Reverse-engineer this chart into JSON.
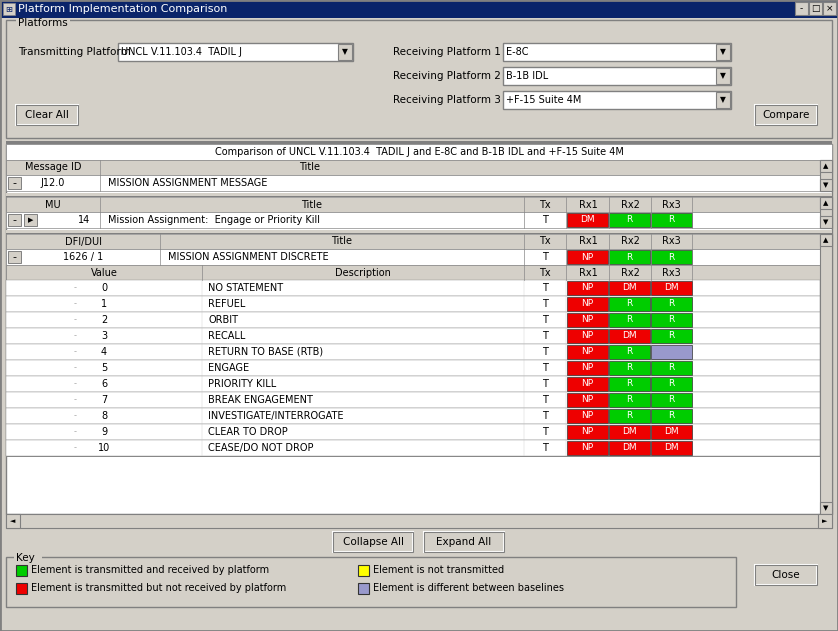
{
  "title": "Platform Implementation Comparison",
  "bg_color": "#d4d0c8",
  "transmitting_platform": "UNCL V.11.103.4  TADIL J",
  "receiving_platform1": "E-8C",
  "receiving_platform2": "B-1B IDL",
  "receiving_platform3": "+F-15 Suite 4M",
  "comparison_title": "Comparison of UNCL V.11.103.4  TADIL J and E-8C and B-1B IDL and +F-15 Suite 4M",
  "message_id": "J12.0",
  "message_title": "MISSION ASSIGNMENT MESSAGE",
  "mu_row": {
    "mu": "14",
    "title": "Mission Assignment:  Engage or Priority Kill",
    "tx": "T",
    "rx1": {
      "text": "DM",
      "color": "#ee0000"
    },
    "rx2": {
      "text": "R",
      "color": "#00cc00"
    },
    "rx3": {
      "text": "R",
      "color": "#00cc00"
    }
  },
  "dfi_row": {
    "dfi": "1626 / 1",
    "title": "MISSION ASSIGNMENT DISCRETE",
    "tx": "T",
    "rx1": {
      "text": "NP",
      "color": "#ee0000"
    },
    "rx2": {
      "text": "R",
      "color": "#00cc00"
    },
    "rx3": {
      "text": "R",
      "color": "#00cc00"
    }
  },
  "value_rows": [
    {
      "value": "0",
      "desc": "NO STATEMENT",
      "tx": "T",
      "rx1": {
        "text": "NP",
        "color": "#ee0000"
      },
      "rx2": {
        "text": "DM",
        "color": "#ee0000"
      },
      "rx3": {
        "text": "DM",
        "color": "#ee0000"
      }
    },
    {
      "value": "1",
      "desc": "REFUEL",
      "tx": "T",
      "rx1": {
        "text": "NP",
        "color": "#ee0000"
      },
      "rx2": {
        "text": "R",
        "color": "#00cc00"
      },
      "rx3": {
        "text": "R",
        "color": "#00cc00"
      }
    },
    {
      "value": "2",
      "desc": "ORBIT",
      "tx": "T",
      "rx1": {
        "text": "NP",
        "color": "#ee0000"
      },
      "rx2": {
        "text": "R",
        "color": "#00cc00"
      },
      "rx3": {
        "text": "R",
        "color": "#00cc00"
      }
    },
    {
      "value": "3",
      "desc": "RECALL",
      "tx": "T",
      "rx1": {
        "text": "NP",
        "color": "#ee0000"
      },
      "rx2": {
        "text": "DM",
        "color": "#ee0000"
      },
      "rx3": {
        "text": "R",
        "color": "#00cc00"
      }
    },
    {
      "value": "4",
      "desc": "RETURN TO BASE (RTB)",
      "tx": "T",
      "rx1": {
        "text": "NP",
        "color": "#ee0000"
      },
      "rx2": {
        "text": "R",
        "color": "#00cc00"
      },
      "rx3": {
        "text": "",
        "color": "#9999cc"
      }
    },
    {
      "value": "5",
      "desc": "ENGAGE",
      "tx": "T",
      "rx1": {
        "text": "NP",
        "color": "#ee0000"
      },
      "rx2": {
        "text": "R",
        "color": "#00cc00"
      },
      "rx3": {
        "text": "R",
        "color": "#00cc00"
      }
    },
    {
      "value": "6",
      "desc": "PRIORITY KILL",
      "tx": "T",
      "rx1": {
        "text": "NP",
        "color": "#ee0000"
      },
      "rx2": {
        "text": "R",
        "color": "#00cc00"
      },
      "rx3": {
        "text": "R",
        "color": "#00cc00"
      }
    },
    {
      "value": "7",
      "desc": "BREAK ENGAGEMENT",
      "tx": "T",
      "rx1": {
        "text": "NP",
        "color": "#ee0000"
      },
      "rx2": {
        "text": "R",
        "color": "#00cc00"
      },
      "rx3": {
        "text": "R",
        "color": "#00cc00"
      }
    },
    {
      "value": "8",
      "desc": "INVESTIGATE/INTERROGATE",
      "tx": "T",
      "rx1": {
        "text": "NP",
        "color": "#ee0000"
      },
      "rx2": {
        "text": "R",
        "color": "#00cc00"
      },
      "rx3": {
        "text": "R",
        "color": "#00cc00"
      }
    },
    {
      "value": "9",
      "desc": "CLEAR TO DROP",
      "tx": "T",
      "rx1": {
        "text": "NP",
        "color": "#ee0000"
      },
      "rx2": {
        "text": "DM",
        "color": "#ee0000"
      },
      "rx3": {
        "text": "DM",
        "color": "#ee0000"
      }
    },
    {
      "value": "10",
      "desc": "CEASE/DO NOT DROP",
      "tx": "T",
      "rx1": {
        "text": "NP",
        "color": "#ee0000"
      },
      "rx2": {
        "text": "DM",
        "color": "#ee0000"
      },
      "rx3": {
        "text": "DM",
        "color": "#ee0000"
      }
    }
  ],
  "key_items": [
    {
      "color": "#00cc00",
      "text": "Element is transmitted and received by platform"
    },
    {
      "color": "#ee0000",
      "text": "Element is transmitted but not received by platform"
    },
    {
      "color": "#ffff00",
      "text": "Element is not transmitted"
    },
    {
      "color": "#9999cc",
      "text": "Element is different between baselines"
    }
  ]
}
